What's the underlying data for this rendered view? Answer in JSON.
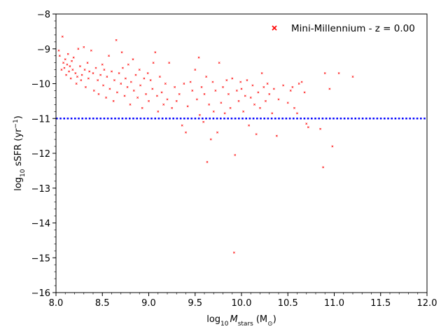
{
  "chart_data": {
    "type": "scatter",
    "xlabel": {
      "prefix": "log",
      "sub": "10",
      "var": "M",
      "var_sub": "stars",
      "unit": "(M",
      "unit_sub": "⊙",
      "unit_end": ")"
    },
    "ylabel": {
      "prefix": "log",
      "sub": "10",
      "main": " sSFR (yr",
      "sup": "−1",
      "end": ")"
    },
    "xlim": [
      8.0,
      12.0
    ],
    "ylim": [
      -16,
      -8
    ],
    "xticks": [
      8.0,
      8.5,
      9.0,
      9.5,
      10.0,
      10.5,
      11.0,
      11.5,
      12.0
    ],
    "xtick_labels": [
      "8.0",
      "8.5",
      "9.0",
      "9.5",
      "10.0",
      "10.5",
      "11.0",
      "11.5",
      "12.0"
    ],
    "yticks": [
      -16,
      -15,
      -14,
      -13,
      -12,
      -11,
      -10,
      -9,
      -8
    ],
    "ytick_labels": [
      "−16",
      "−15",
      "−14",
      "−13",
      "−12",
      "−11",
      "−10",
      "−9",
      "−8"
    ],
    "grid": false,
    "legend": {
      "position": "top-right",
      "label": "Mini-Millennium - z = 0.00",
      "color": "#ff0000"
    },
    "threshold_line": {
      "y": -11,
      "color": "#0000ff",
      "style": "dotted"
    },
    "series": [
      {
        "name": "Mini-Millennium - z = 0.00",
        "color": "#ff0000",
        "marker": "x",
        "points": [
          [
            8.03,
            -9.05
          ],
          [
            8.04,
            -9.2
          ],
          [
            8.06,
            -9.6
          ],
          [
            8.07,
            -8.65
          ],
          [
            8.08,
            -9.4
          ],
          [
            8.09,
            -9.55
          ],
          [
            8.1,
            -9.3
          ],
          [
            8.11,
            -9.75
          ],
          [
            8.12,
            -9.45
          ],
          [
            8.13,
            -9.15
          ],
          [
            8.14,
            -9.65
          ],
          [
            8.15,
            -9.5
          ],
          [
            8.16,
            -9.85
          ],
          [
            8.17,
            -9.35
          ],
          [
            8.18,
            -9.6
          ],
          [
            8.19,
            -9.25
          ],
          [
            8.21,
            -9.7
          ],
          [
            8.22,
            -10.0
          ],
          [
            8.23,
            -9.8
          ],
          [
            8.24,
            -9.0
          ],
          [
            8.26,
            -9.5
          ],
          [
            8.27,
            -9.9
          ],
          [
            8.28,
            -9.75
          ],
          [
            8.3,
            -8.95
          ],
          [
            8.31,
            -9.6
          ],
          [
            8.32,
            -10.1
          ],
          [
            8.34,
            -9.4
          ],
          [
            8.35,
            -9.85
          ],
          [
            8.36,
            -9.65
          ],
          [
            8.38,
            -9.05
          ],
          [
            8.4,
            -9.7
          ],
          [
            8.41,
            -10.2
          ],
          [
            8.43,
            -9.55
          ],
          [
            8.45,
            -9.9
          ],
          [
            8.46,
            -10.3
          ],
          [
            8.48,
            -9.75
          ],
          [
            8.5,
            -9.45
          ],
          [
            8.51,
            -10.05
          ],
          [
            8.52,
            -9.6
          ],
          [
            8.54,
            -10.4
          ],
          [
            8.55,
            -9.8
          ],
          [
            8.57,
            -9.2
          ],
          [
            8.58,
            -10.15
          ],
          [
            8.6,
            -9.65
          ],
          [
            8.62,
            -10.5
          ],
          [
            8.63,
            -9.9
          ],
          [
            8.65,
            -8.75
          ],
          [
            8.66,
            -10.25
          ],
          [
            8.68,
            -9.7
          ],
          [
            8.7,
            -10.0
          ],
          [
            8.71,
            -9.1
          ],
          [
            8.72,
            -9.55
          ],
          [
            8.74,
            -10.35
          ],
          [
            8.75,
            -9.85
          ],
          [
            8.77,
            -10.1
          ],
          [
            8.78,
            -9.45
          ],
          [
            8.8,
            -10.6
          ],
          [
            8.81,
            -9.95
          ],
          [
            8.83,
            -9.3
          ],
          [
            8.84,
            -10.2
          ],
          [
            8.86,
            -9.75
          ],
          [
            8.88,
            -10.4
          ],
          [
            8.9,
            -9.6
          ],
          [
            8.91,
            -10.05
          ],
          [
            8.93,
            -10.7
          ],
          [
            8.95,
            -9.85
          ],
          [
            8.97,
            -10.3
          ],
          [
            8.99,
            -9.7
          ],
          [
            9.0,
            -10.5
          ],
          [
            9.02,
            -9.9
          ],
          [
            9.04,
            -10.15
          ],
          [
            9.05,
            -9.4
          ],
          [
            9.07,
            -9.1
          ],
          [
            9.09,
            -10.35
          ],
          [
            9.1,
            -10.8
          ],
          [
            9.12,
            -9.8
          ],
          [
            9.14,
            -10.25
          ],
          [
            9.16,
            -10.6
          ],
          [
            9.18,
            -10.0
          ],
          [
            9.2,
            -10.45
          ],
          [
            9.22,
            -9.4
          ],
          [
            9.25,
            -10.7
          ],
          [
            9.28,
            -10.1
          ],
          [
            9.3,
            -10.5
          ],
          [
            9.33,
            -10.3
          ],
          [
            9.36,
            -11.2
          ],
          [
            9.38,
            -10.0
          ],
          [
            9.4,
            -11.4
          ],
          [
            9.42,
            -10.65
          ],
          [
            9.45,
            -9.95
          ],
          [
            9.47,
            -10.2
          ],
          [
            9.5,
            -9.6
          ],
          [
            9.52,
            -10.45
          ],
          [
            9.54,
            -9.25
          ],
          [
            9.55,
            -10.9
          ],
          [
            9.57,
            -10.1
          ],
          [
            9.59,
            -11.1
          ],
          [
            9.6,
            -10.3
          ],
          [
            9.62,
            -9.8
          ],
          [
            9.63,
            -12.25
          ],
          [
            9.65,
            -10.6
          ],
          [
            9.67,
            -11.6
          ],
          [
            9.69,
            -9.95
          ],
          [
            9.7,
            -10.8
          ],
          [
            9.72,
            -10.2
          ],
          [
            9.74,
            -11.4
          ],
          [
            9.76,
            -9.4
          ],
          [
            9.78,
            -10.55
          ],
          [
            9.8,
            -10.1
          ],
          [
            9.82,
            -10.85
          ],
          [
            9.84,
            -9.9
          ],
          [
            9.86,
            -10.3
          ],
          [
            9.88,
            -10.7
          ],
          [
            9.9,
            -9.85
          ],
          [
            9.92,
            -14.85
          ],
          [
            9.93,
            -12.05
          ],
          [
            9.95,
            -10.2
          ],
          [
            9.97,
            -10.5
          ],
          [
            9.99,
            -9.95
          ],
          [
            10.0,
            -10.15
          ],
          [
            10.02,
            -10.8
          ],
          [
            10.04,
            -10.35
          ],
          [
            10.06,
            -9.9
          ],
          [
            10.08,
            -11.2
          ],
          [
            10.1,
            -10.4
          ],
          [
            10.12,
            -10.05
          ],
          [
            10.14,
            -10.6
          ],
          [
            10.16,
            -11.45
          ],
          [
            10.18,
            -10.25
          ],
          [
            10.2,
            -10.7
          ],
          [
            10.22,
            -9.7
          ],
          [
            10.24,
            -10.1
          ],
          [
            10.26,
            -10.5
          ],
          [
            10.28,
            -10.0
          ],
          [
            10.3,
            -10.3
          ],
          [
            10.33,
            -10.85
          ],
          [
            10.35,
            -10.15
          ],
          [
            10.38,
            -11.5
          ],
          [
            10.4,
            -10.45
          ],
          [
            10.45,
            -10.05
          ],
          [
            10.5,
            -10.55
          ],
          [
            10.53,
            -10.2
          ],
          [
            10.55,
            -10.1
          ],
          [
            10.57,
            -10.7
          ],
          [
            10.6,
            -10.85
          ],
          [
            10.62,
            -10.0
          ],
          [
            10.65,
            -9.95
          ],
          [
            10.68,
            -10.25
          ],
          [
            10.7,
            -11.15
          ],
          [
            10.72,
            -11.25
          ],
          [
            10.85,
            -11.3
          ],
          [
            10.88,
            -12.4
          ],
          [
            10.9,
            -9.7
          ],
          [
            10.95,
            -10.15
          ],
          [
            10.98,
            -11.8
          ],
          [
            11.05,
            -9.7
          ],
          [
            11.2,
            -9.8
          ]
        ]
      }
    ]
  }
}
